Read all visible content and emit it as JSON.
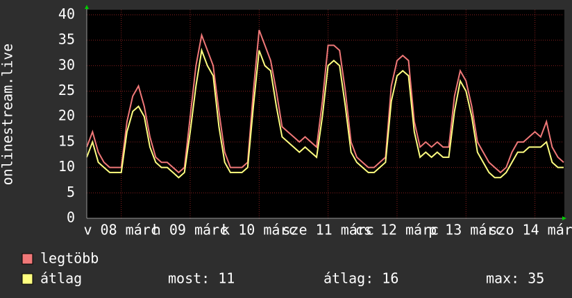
{
  "chart_data": {
    "type": "line",
    "y_label": "onlinestream.live",
    "x": [
      0,
      2,
      4,
      6,
      8,
      10,
      12,
      14,
      16,
      18,
      20,
      22,
      24,
      26,
      28,
      30,
      32,
      34,
      36,
      38,
      40,
      42,
      44,
      46,
      48,
      50,
      52,
      54,
      56,
      58,
      60,
      62,
      64,
      66,
      68,
      70,
      72,
      74,
      76,
      78,
      80,
      82,
      84,
      86,
      88,
      90,
      92,
      94,
      96,
      98,
      100,
      102,
      104,
      106,
      108,
      110,
      112,
      114,
      116,
      118,
      120,
      122,
      124,
      126,
      128,
      130,
      132,
      134,
      136,
      138,
      140,
      142,
      144,
      146,
      148,
      150,
      152,
      154,
      156,
      158,
      160,
      162,
      164,
      166
    ],
    "xlim": [
      0,
      166
    ],
    "xticks": [
      {
        "value": 12,
        "label": "v 08 márc"
      },
      {
        "value": 36,
        "label": "h 09 márc"
      },
      {
        "value": 60,
        "label": "k 10 márc"
      },
      {
        "value": 84,
        "label": "sze 11 márc"
      },
      {
        "value": 108,
        "label": "cs 12 márc"
      },
      {
        "value": 132,
        "label": "p 13 márc"
      },
      {
        "value": 156,
        "label": "szo 14 márc"
      }
    ],
    "ylim": [
      0,
      41
    ],
    "yticks": [
      0,
      5,
      10,
      15,
      20,
      25,
      30,
      35,
      40
    ],
    "grid": true,
    "series": [
      {
        "name": "legtöbb",
        "color": "#f07878",
        "values": [
          14,
          17,
          13,
          11,
          10,
          10,
          10,
          19,
          24,
          26,
          22,
          16,
          12,
          11,
          11,
          10,
          9,
          10,
          20,
          30,
          36,
          33,
          30,
          21,
          13,
          10,
          10,
          10,
          11,
          25,
          37,
          34,
          31,
          25,
          18,
          17,
          16,
          15,
          16,
          15,
          14,
          23,
          34,
          34,
          33,
          25,
          15,
          12,
          11,
          10,
          10,
          11,
          12,
          26,
          31,
          32,
          31,
          19,
          14,
          15,
          14,
          15,
          14,
          14,
          24,
          29,
          27,
          22,
          15,
          13,
          11,
          10,
          9,
          10,
          13,
          15,
          15,
          16,
          17,
          16,
          19,
          14,
          12,
          11
        ]
      },
      {
        "name": "átlag",
        "color": "#ffff80",
        "values": [
          12,
          15,
          11,
          10,
          9,
          9,
          9,
          17,
          21,
          22,
          20,
          14,
          11,
          10,
          10,
          9,
          8,
          9,
          17,
          26,
          33,
          30,
          28,
          18,
          11,
          9,
          9,
          9,
          10,
          22,
          33,
          30,
          29,
          22,
          16,
          15,
          14,
          13,
          14,
          13,
          12,
          20,
          30,
          31,
          30,
          22,
          13,
          11,
          10,
          9,
          9,
          10,
          11,
          23,
          28,
          29,
          28,
          17,
          12,
          13,
          12,
          13,
          12,
          12,
          21,
          27,
          25,
          20,
          13,
          11,
          9,
          8,
          8,
          9,
          11,
          13,
          13,
          14,
          14,
          14,
          15,
          11,
          10,
          10
        ]
      }
    ],
    "stats": [
      "most: 11",
      "átlag: 16",
      "max: 35"
    ]
  }
}
